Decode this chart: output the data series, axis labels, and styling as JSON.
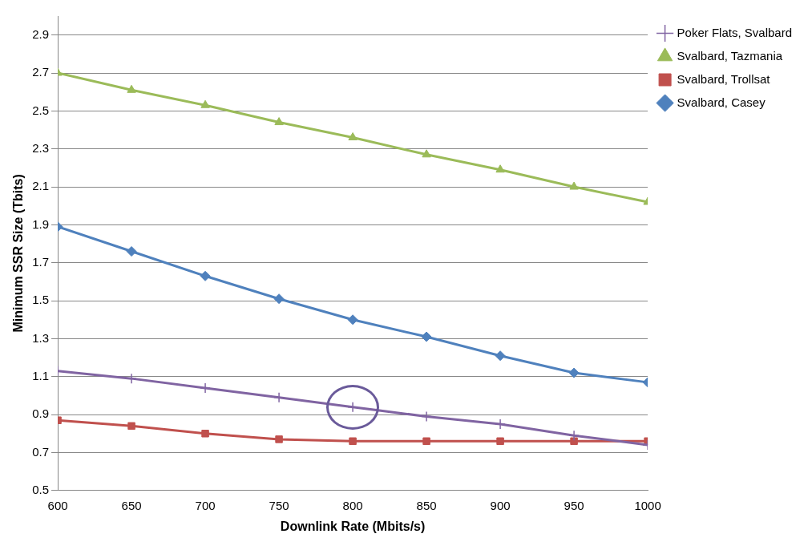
{
  "chart_data": {
    "type": "line",
    "xlabel": "Downlink Rate (Mbits/s)",
    "ylabel": "Minimum SSR Size (Tbits)",
    "x": [
      600,
      650,
      700,
      750,
      800,
      850,
      900,
      950,
      1000
    ],
    "xlim": [
      600,
      1000
    ],
    "xticks": [
      600,
      650,
      700,
      750,
      800,
      850,
      900,
      950,
      1000
    ],
    "ylim": [
      0.5,
      3.0
    ],
    "yticks": [
      0.5,
      0.7,
      0.9,
      1.1,
      1.3,
      1.5,
      1.7,
      1.9,
      2.1,
      2.3,
      2.5,
      2.7,
      2.9
    ],
    "grid": "y",
    "legend": "right",
    "series": [
      {
        "name": "Poker Flats, Svalbard",
        "color": "#8064a2",
        "marker": "cross",
        "values": [
          1.13,
          1.09,
          1.04,
          0.99,
          0.94,
          0.89,
          0.85,
          0.79,
          0.74
        ]
      },
      {
        "name": "Svalbard, Tazmania",
        "color": "#9bbb59",
        "marker": "triangle",
        "values": [
          2.7,
          2.61,
          2.53,
          2.44,
          2.36,
          2.27,
          2.19,
          2.1,
          2.02
        ]
      },
      {
        "name": "Svalbard, Trollsat",
        "color": "#c0504d",
        "marker": "square",
        "values": [
          0.87,
          0.84,
          0.8,
          0.77,
          0.76,
          0.76,
          0.76,
          0.76,
          0.76
        ]
      },
      {
        "name": "Svalbard, Casey",
        "color": "#4f81bd",
        "marker": "diamond",
        "values": [
          1.89,
          1.76,
          1.63,
          1.51,
          1.4,
          1.31,
          1.21,
          1.12,
          1.07
        ]
      }
    ]
  }
}
